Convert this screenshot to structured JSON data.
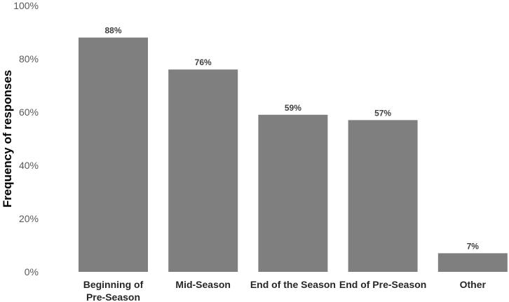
{
  "chart_data": {
    "type": "bar",
    "categories": [
      [
        "Beginning of",
        "Pre-Season"
      ],
      [
        "Mid-Season"
      ],
      [
        "End of the Season"
      ],
      [
        "End of Pre-Season"
      ],
      [
        "Other"
      ]
    ],
    "values": [
      88,
      76,
      59,
      57,
      7
    ],
    "data_labels": [
      "88%",
      "76%",
      "59%",
      "57%",
      "7%"
    ],
    "ylabel": "Frequency of responses",
    "xlabel": "",
    "ylim": [
      0,
      100
    ],
    "yticks": [
      "0%",
      "20%",
      "40%",
      "60%",
      "80%",
      "100%"
    ],
    "grid": false,
    "legend": "none",
    "colors": {
      "bar": "#7f7f7f"
    }
  }
}
